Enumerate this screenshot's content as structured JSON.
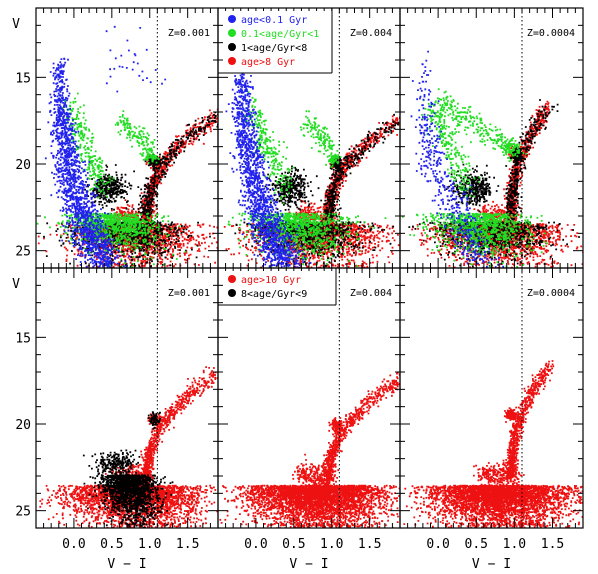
{
  "chart_data": {
    "type": "scatter",
    "layout": "2x3 grid of color-magnitude diagrams",
    "xlabel": "V − I",
    "ylabel": "V",
    "xlim": [
      -0.5,
      1.9
    ],
    "ylim": [
      26,
      11
    ],
    "x_ticks": [
      0.0,
      0.5,
      1.0,
      1.5
    ],
    "x_tick_labels": [
      "0.0",
      "0.5",
      "1.0",
      "1.5"
    ],
    "y_ticks": [
      15,
      20,
      25
    ],
    "y_tick_labels": [
      "15",
      "20",
      "25"
    ],
    "reference_line": {
      "style": "dotted",
      "x": 1.1
    },
    "colors": {
      "young": "#2222ee",
      "mid": "#22dd22",
      "old1": "#000000",
      "old2": "#ee1111"
    },
    "legends": {
      "top": [
        {
          "label": "age<0.1 Gyr",
          "color": "#2222ee"
        },
        {
          "label": "0.1<age/Gyr<1",
          "color": "#22dd22"
        },
        {
          "label": "1<age/Gyr<8",
          "color": "#000000"
        },
        {
          "label": "age>8 Gyr",
          "color": "#ee1111"
        }
      ],
      "bottom": [
        {
          "label": "age>10 Gyr",
          "color": "#ee1111"
        },
        {
          "label": "8<age/Gyr<9",
          "color": "#000000"
        }
      ]
    },
    "panels": [
      {
        "row": 0,
        "col": 0,
        "z_label": "Z=0.001",
        "show_y_labels": true,
        "show_x_labels": false,
        "legend": null,
        "mode": "all-ages",
        "seed": 11,
        "rgb_tip": [
          1.95,
          17.0
        ],
        "clump": [
          1.05,
          19.8
        ]
      },
      {
        "row": 0,
        "col": 1,
        "z_label": "Z=0.004",
        "show_y_labels": false,
        "show_x_labels": false,
        "legend": "top",
        "mode": "all-ages",
        "seed": 22,
        "rgb_tip": [
          1.9,
          17.4
        ],
        "clump": [
          1.05,
          20.0
        ]
      },
      {
        "row": 0,
        "col": 2,
        "z_label": "Z=0.0004",
        "show_y_labels": false,
        "show_x_labels": false,
        "legend": null,
        "mode": "all-ages",
        "seed": 33,
        "rgb_tip": [
          1.45,
          16.6
        ],
        "clump": [
          1.0,
          19.4
        ]
      },
      {
        "row": 1,
        "col": 0,
        "z_label": "Z=0.001",
        "show_y_labels": true,
        "show_x_labels": true,
        "legend": null,
        "mode": "old-mix",
        "seed": 44,
        "rgb_tip": [
          1.9,
          17.0
        ],
        "clump": [
          1.05,
          19.7
        ]
      },
      {
        "row": 1,
        "col": 1,
        "z_label": "Z=0.004",
        "show_y_labels": false,
        "show_x_labels": true,
        "legend": "bottom",
        "mode": "old-red",
        "seed": 55,
        "rgb_tip": [
          1.9,
          17.4
        ],
        "clump": [
          1.05,
          20.0
        ]
      },
      {
        "row": 1,
        "col": 2,
        "z_label": "Z=0.0004",
        "show_y_labels": false,
        "show_x_labels": true,
        "legend": null,
        "mode": "old-red",
        "seed": 66,
        "rgb_tip": [
          1.45,
          16.6
        ],
        "clump": [
          0.95,
          19.4
        ]
      }
    ]
  }
}
